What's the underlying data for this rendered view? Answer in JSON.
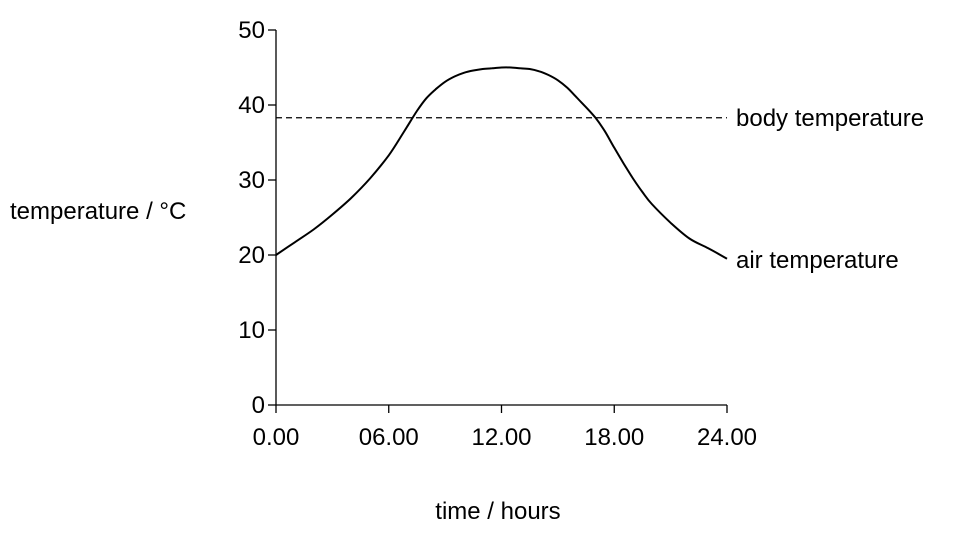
{
  "chart_data": {
    "type": "line",
    "title": "",
    "xlabel": "time / hours",
    "ylabel": "temperature / °C",
    "xlim": [
      0,
      24
    ],
    "ylim": [
      0,
      50
    ],
    "x_ticks": [
      0,
      6,
      12,
      18,
      24
    ],
    "x_tick_labels": [
      "0.00",
      "06.00",
      "12.00",
      "18.00",
      "24.00"
    ],
    "y_ticks": [
      0,
      10,
      20,
      30,
      40,
      50
    ],
    "y_tick_labels": [
      "0",
      "10",
      "20",
      "30",
      "40",
      "50"
    ],
    "grid": false,
    "legend": "none",
    "series": [
      {
        "name": "air temperature",
        "style": "solid",
        "color": "#000000",
        "x": [
          0,
          1,
          2,
          3,
          4,
          5,
          6,
          6.8,
          7.5,
          8,
          8.5,
          9,
          9.5,
          10,
          10.5,
          11,
          11.5,
          12,
          12.5,
          13,
          13.5,
          14,
          14.5,
          15,
          15.5,
          16,
          16.5,
          17,
          17.5,
          18,
          18.5,
          19,
          19.5,
          20,
          21,
          22,
          23,
          24
        ],
        "values": [
          20,
          21.7,
          23.4,
          25.4,
          27.6,
          30.2,
          33.3,
          36.4,
          39.2,
          40.9,
          42.1,
          43.1,
          43.8,
          44.3,
          44.6,
          44.8,
          44.9,
          45,
          45,
          44.9,
          44.8,
          44.5,
          44,
          43.3,
          42.3,
          41,
          39.7,
          38.3,
          36.5,
          34.3,
          32.2,
          30.2,
          28.4,
          26.8,
          24.3,
          22.2,
          20.9,
          19.5
        ]
      },
      {
        "name": "body temperature",
        "style": "dashed",
        "color": "#000000",
        "x": [
          0,
          24
        ],
        "values": [
          38.3,
          38.3
        ]
      }
    ]
  }
}
